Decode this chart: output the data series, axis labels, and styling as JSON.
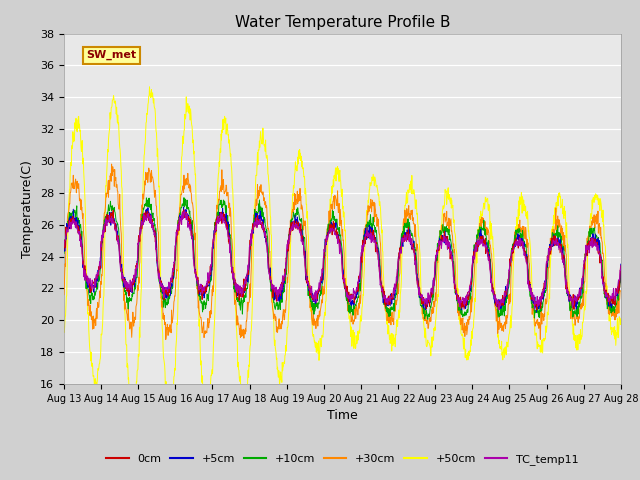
{
  "title": "Water Temperature Profile B",
  "xlabel": "Time",
  "ylabel": "Temperature(C)",
  "ylim": [
    16,
    38
  ],
  "yticks": [
    16,
    18,
    20,
    22,
    24,
    26,
    28,
    30,
    32,
    34,
    36,
    38
  ],
  "bg_color": "#d0d0d0",
  "plot_bg": "#e8e8e8",
  "series_colors": {
    "0cm": "#cc0000",
    "+5cm": "#0000cc",
    "+10cm": "#00aa00",
    "+30cm": "#ff8800",
    "+50cm": "#ffff00",
    "TC_temp11": "#aa00aa"
  },
  "sw_met_label": "SW_met",
  "xtick_labels": [
    "Aug 13",
    "Aug 14",
    "Aug 15",
    "Aug 16",
    "Aug 17",
    "Aug 18",
    "Aug 19",
    "Aug 20",
    "Aug 21",
    "Aug 22",
    "Aug 23",
    "Aug 24",
    "Aug 25",
    "Aug 26",
    "Aug 27",
    "Aug 28"
  ]
}
